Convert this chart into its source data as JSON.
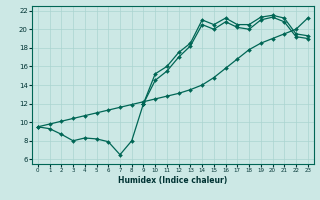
{
  "xlabel": "Humidex (Indice chaleur)",
  "bg_color": "#cce8e5",
  "line_color": "#006655",
  "grid_color": "#aad4d0",
  "xlim": [
    -0.5,
    23.5
  ],
  "ylim": [
    5.5,
    22.5
  ],
  "xticks": [
    0,
    1,
    2,
    3,
    4,
    5,
    6,
    7,
    8,
    9,
    10,
    11,
    12,
    13,
    14,
    15,
    16,
    17,
    18,
    19,
    20,
    21,
    22,
    23
  ],
  "yticks": [
    6,
    8,
    10,
    12,
    14,
    16,
    18,
    20,
    22
  ],
  "curve_dip_x": [
    0,
    1,
    2,
    3,
    4,
    5,
    6,
    7,
    8,
    9
  ],
  "curve_dip_y": [
    9.5,
    9.3,
    8.7,
    8.0,
    8.3,
    8.2,
    7.9,
    6.5,
    8.0,
    12.0
  ],
  "curve_upper_x": [
    9,
    10,
    11,
    12,
    13,
    14,
    15,
    16,
    17,
    18,
    19,
    20,
    21,
    22,
    23
  ],
  "curve_upper_y": [
    12.0,
    15.2,
    16.0,
    17.5,
    18.5,
    21.0,
    20.5,
    21.2,
    20.5,
    20.5,
    21.3,
    21.5,
    21.2,
    19.5,
    19.3
  ],
  "curve_mid_x": [
    9,
    10,
    11,
    12,
    13,
    14,
    15,
    16,
    17,
    18,
    19,
    20,
    21,
    22,
    23
  ],
  "curve_mid_y": [
    12.0,
    14.5,
    15.5,
    17.0,
    18.2,
    20.5,
    20.0,
    20.8,
    20.2,
    20.0,
    21.0,
    21.3,
    20.8,
    19.2,
    19.0
  ],
  "curve_diag_x": [
    0,
    1,
    2,
    3,
    4,
    5,
    6,
    7,
    8,
    9,
    10,
    11,
    12,
    13,
    14,
    15,
    16,
    17,
    18,
    19,
    20,
    21,
    22,
    23
  ],
  "curve_diag_y": [
    9.5,
    9.8,
    10.1,
    10.4,
    10.7,
    11.0,
    11.3,
    11.6,
    11.9,
    12.2,
    12.5,
    12.8,
    13.1,
    13.5,
    14.0,
    14.8,
    15.8,
    16.8,
    17.8,
    18.5,
    19.0,
    19.5,
    20.0,
    21.2
  ]
}
